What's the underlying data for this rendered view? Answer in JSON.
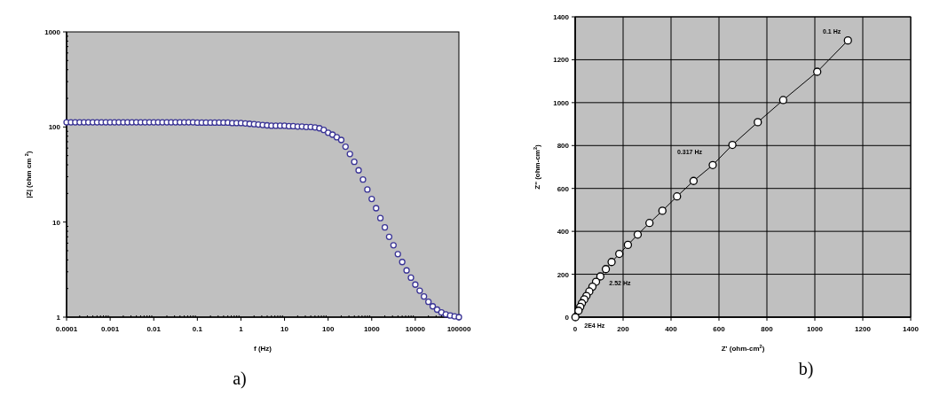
{
  "chart_data": [
    {
      "type": "scatter",
      "xlabel": "f (Hz)",
      "ylabel": "|Z| (ohm cm $^{2}$)",
      "log": "xy",
      "marker": "circle",
      "grid": false,
      "xlim": [
        0.0001,
        100000
      ],
      "xticks": [
        0.0001,
        0.001,
        0.01,
        0.1,
        1,
        10,
        100,
        1000,
        10000,
        100000
      ],
      "ylim": [
        1,
        1000
      ],
      "yticks": [
        1,
        10,
        100,
        1000
      ],
      "annotations": [
        "a)"
      ],
      "x": [
        0.0001,
        0.000126,
        0.000158,
        0.0002,
        0.000251,
        0.000316,
        0.000398,
        0.000501,
        0.000631,
        0.000794,
        0.001,
        0.00126,
        0.00158,
        0.002,
        0.00251,
        0.00316,
        0.00398,
        0.00501,
        0.00631,
        0.00794,
        0.01,
        0.0126,
        0.0158,
        0.02,
        0.0251,
        0.0316,
        0.0398,
        0.0501,
        0.0631,
        0.0794,
        0.1,
        0.126,
        0.158,
        0.2,
        0.251,
        0.316,
        0.398,
        0.501,
        0.631,
        0.794,
        1,
        1.26,
        1.58,
        2,
        2.51,
        3.16,
        3.98,
        5.01,
        6.31,
        7.94,
        10,
        12.6,
        15.8,
        20,
        25.1,
        31.6,
        39.8,
        50.1,
        63.1,
        79.4,
        100,
        126,
        158,
        200,
        251,
        316,
        398,
        501,
        631,
        794,
        1000,
        1260,
        1580,
        2000,
        2510,
        3160,
        3980,
        5010,
        6310,
        7940,
        10000,
        12600,
        15800,
        20000,
        25100,
        31600,
        39800,
        50100,
        63100,
        79400,
        100000
      ],
      "series": [
        {
          "color": "#3a3496",
          "values": [
            112,
            112,
            112,
            112,
            112,
            112,
            112,
            112,
            112,
            112,
            112,
            112,
            112,
            112,
            112,
            112,
            112,
            112,
            112,
            112,
            112,
            112,
            112,
            112,
            112,
            112,
            112,
            112,
            112,
            112,
            111,
            111,
            111,
            111,
            111,
            111,
            111,
            111,
            110,
            110,
            110,
            109,
            108,
            107,
            106,
            105,
            104,
            103,
            103,
            103,
            103,
            102,
            102,
            101,
            101,
            100,
            100,
            99,
            97,
            93,
            87,
            83,
            78,
            73,
            62,
            52,
            43,
            35,
            28,
            22,
            17.5,
            14,
            11,
            8.8,
            7,
            5.7,
            4.6,
            3.8,
            3.1,
            2.6,
            2.2,
            1.9,
            1.65,
            1.45,
            1.3,
            1.2,
            1.12,
            1.07,
            1.04,
            1.02,
            1.0
          ]
        }
      ]
    },
    {
      "type": "line",
      "xlabel": "Z' (ohm-cm$^{2}$)",
      "ylabel": "Z'' (ohm-cm$^{2}$)",
      "marker": "circle",
      "line_style": "solid",
      "grid": true,
      "xlim": [
        0,
        1400
      ],
      "xticks": [
        0,
        200,
        400,
        600,
        800,
        1000,
        1200,
        1400
      ],
      "ylim": [
        0,
        1400
      ],
      "yticks": [
        0,
        200,
        400,
        600,
        800,
        1000,
        1200,
        1400
      ],
      "annotations": [
        {
          "text": "0.1 Hz",
          "x": 1138,
          "y": 1290
        },
        {
          "text": "0.317 Hz",
          "x": 574,
          "y": 709
        },
        {
          "text": "2.52 Hz",
          "x": 105,
          "y": 190
        },
        {
          "text": "2E4 Hz",
          "x": 1,
          "y": 0
        },
        "b)"
      ],
      "x": [
        1138,
        1010,
        868,
        762,
        656,
        574,
        494,
        425,
        364,
        310,
        261,
        220,
        184,
        152,
        128,
        105,
        87,
        72,
        59,
        47,
        38,
        28,
        21,
        14,
        1
      ],
      "series": [
        {
          "color": "#000000",
          "values": [
            1290,
            1144,
            1012,
            909,
            803,
            709,
            635,
            563,
            496,
            439,
            385,
            337,
            295,
            257,
            224,
            190,
            165,
            142,
            120,
            99,
            83,
            65,
            48,
            30,
            0
          ]
        }
      ]
    }
  ]
}
